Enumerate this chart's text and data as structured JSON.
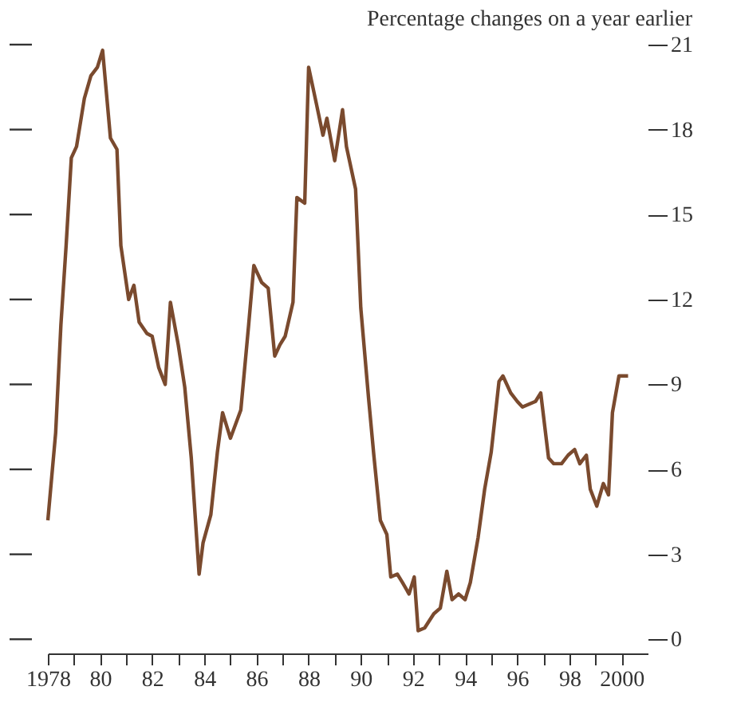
{
  "chart_data": {
    "type": "line",
    "subtitle": "Percentage changes on a year earlier",
    "x": [
      1978.0,
      1978.3,
      1978.5,
      1978.7,
      1978.9,
      1979.1,
      1979.4,
      1979.65,
      1979.9,
      1980.1,
      1980.4,
      1980.65,
      1980.8,
      1981.1,
      1981.3,
      1981.5,
      1981.8,
      1982.0,
      1982.25,
      1982.5,
      1982.7,
      1983.0,
      1983.25,
      1983.5,
      1983.8,
      1983.95,
      1984.25,
      1984.5,
      1984.7,
      1985.0,
      1985.4,
      1985.7,
      1985.9,
      1986.2,
      1986.45,
      1986.7,
      1986.9,
      1987.1,
      1987.4,
      1987.55,
      1987.85,
      1988.0,
      1988.3,
      1988.55,
      1988.7,
      1989.0,
      1989.3,
      1989.45,
      1989.8,
      1990.0,
      1990.3,
      1990.5,
      1990.75,
      1991.0,
      1991.15,
      1991.4,
      1991.6,
      1991.85,
      1992.05,
      1992.2,
      1992.45,
      1992.8,
      1993.05,
      1993.3,
      1993.5,
      1993.75,
      1994.0,
      1994.2,
      1994.5,
      1994.75,
      1995.0,
      1995.3,
      1995.45,
      1995.75,
      1996.0,
      1996.2,
      1996.45,
      1996.7,
      1996.9,
      1997.2,
      1997.4,
      1997.7,
      1997.95,
      1998.2,
      1998.4,
      1998.65,
      1998.8,
      1999.05,
      1999.3,
      1999.5,
      1999.65,
      1999.9,
      2000.25
    ],
    "series": [
      {
        "color": "#7a4a2e",
        "values": [
          4.2,
          7.3,
          11.1,
          13.9,
          17.0,
          17.4,
          19.1,
          19.9,
          20.2,
          20.8,
          17.7,
          17.3,
          13.9,
          12.0,
          12.5,
          11.2,
          10.8,
          10.7,
          9.6,
          9.0,
          11.9,
          10.4,
          8.9,
          6.4,
          2.3,
          3.4,
          4.4,
          6.6,
          8.0,
          7.1,
          8.1,
          11.1,
          13.2,
          12.6,
          12.4,
          10.0,
          10.4,
          10.7,
          11.9,
          15.6,
          15.4,
          20.2,
          18.9,
          17.8,
          18.4,
          16.9,
          18.7,
          17.4,
          15.9,
          11.7,
          8.5,
          6.5,
          4.2,
          3.7,
          2.2,
          2.3,
          2.0,
          1.6,
          2.2,
          0.3,
          0.4,
          0.9,
          1.1,
          2.4,
          1.4,
          1.6,
          1.4,
          2.0,
          3.6,
          5.3,
          6.6,
          9.1,
          9.3,
          8.7,
          8.4,
          8.2,
          8.3,
          8.4,
          8.7,
          6.4,
          6.2,
          6.2,
          6.5,
          6.7,
          6.2,
          6.5,
          5.3,
          4.7,
          5.5,
          5.1,
          8.0,
          9.3,
          9.3
        ]
      }
    ],
    "xlim": [
      1978,
      2001
    ],
    "xticks": [
      {
        "value": 1978,
        "label": "1978"
      },
      {
        "value": 1979,
        "label": null
      },
      {
        "value": 1980,
        "label": "80"
      },
      {
        "value": 1981,
        "label": null
      },
      {
        "value": 1982,
        "label": "82"
      },
      {
        "value": 1983,
        "label": null
      },
      {
        "value": 1984,
        "label": "84"
      },
      {
        "value": 1985,
        "label": null
      },
      {
        "value": 1986,
        "label": "86"
      },
      {
        "value": 1987,
        "label": null
      },
      {
        "value": 1988,
        "label": "88"
      },
      {
        "value": 1989,
        "label": null
      },
      {
        "value": 1990,
        "label": "90"
      },
      {
        "value": 1991,
        "label": null
      },
      {
        "value": 1992,
        "label": "92"
      },
      {
        "value": 1993,
        "label": null
      },
      {
        "value": 1994,
        "label": "94"
      },
      {
        "value": 1995,
        "label": null
      },
      {
        "value": 1996,
        "label": "96"
      },
      {
        "value": 1997,
        "label": null
      },
      {
        "value": 1998,
        "label": "98"
      },
      {
        "value": 1999,
        "label": null
      },
      {
        "value": 2000,
        "label": "2000"
      }
    ],
    "ylim": [
      -0.5,
      21
    ],
    "yticks": [
      0,
      3,
      6,
      9,
      12,
      15,
      18,
      21
    ],
    "grid": false,
    "legend": false
  }
}
